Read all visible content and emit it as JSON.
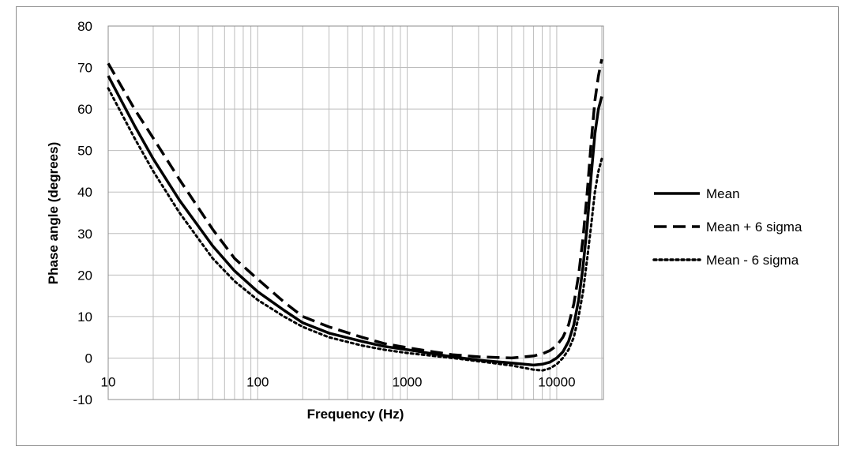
{
  "chart_data": {
    "type": "line",
    "title": "",
    "xlabel": "Frequency (Hz)",
    "ylabel": "Phase angle (degrees)",
    "xscale": "log",
    "xlim": [
      10,
      20000
    ],
    "ylim": [
      -10,
      80
    ],
    "x_ticks": [
      10,
      100,
      1000,
      10000
    ],
    "x_tick_labels": [
      "10",
      "100",
      "1000",
      "10000"
    ],
    "y_ticks": [
      -10,
      0,
      10,
      20,
      30,
      40,
      50,
      60,
      70,
      80
    ],
    "y_tick_labels": [
      "-10",
      "0",
      "10",
      "20",
      "30",
      "40",
      "50",
      "60",
      "70",
      "80"
    ],
    "grid": true,
    "legend_position": "right",
    "x": [
      10,
      15,
      20,
      30,
      50,
      70,
      100,
      150,
      200,
      300,
      500,
      700,
      1000,
      1500,
      2000,
      3000,
      5000,
      7000,
      8000,
      9000,
      10000,
      11000,
      12000,
      13000,
      14000,
      15000,
      16000,
      17000,
      18000,
      19000,
      20000
    ],
    "series": [
      {
        "name": "Mean",
        "style": "solid",
        "values": [
          68,
          56,
          48,
          38,
          27,
          21,
          16,
          11.5,
          8.5,
          6,
          4,
          2.8,
          2,
          1,
          0.3,
          -0.5,
          -1.2,
          -1.7,
          -1.5,
          -1,
          0,
          1.5,
          4,
          8,
          14,
          22,
          32,
          44,
          54,
          60,
          63
        ]
      },
      {
        "name": "Mean + 6 sigma",
        "style": "dashed",
        "values": [
          71,
          60,
          53,
          43,
          31,
          24,
          19,
          13.5,
          10,
          7.5,
          5,
          3.5,
          2.5,
          1.5,
          0.8,
          0.3,
          0,
          0.5,
          1,
          1.8,
          3,
          5,
          8,
          13,
          20,
          29,
          40,
          52,
          62,
          68,
          72
        ]
      },
      {
        "name": "Mean - 6 sigma",
        "style": "dotted",
        "values": [
          65,
          53,
          45,
          35,
          24,
          18.5,
          14,
          10,
          7.5,
          5,
          3,
          2,
          1.2,
          0.5,
          0,
          -0.8,
          -1.8,
          -2.8,
          -3,
          -2.5,
          -1.5,
          0,
          2,
          5,
          10,
          16,
          24,
          32,
          40,
          45,
          48
        ]
      }
    ]
  }
}
